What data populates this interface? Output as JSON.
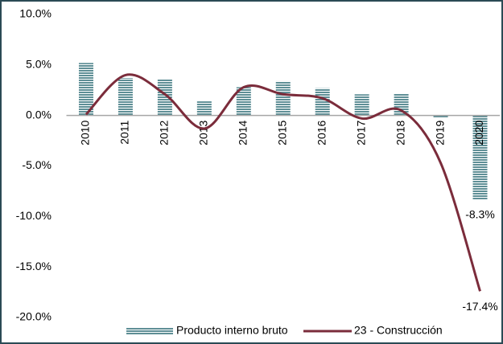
{
  "chart_data": {
    "type": "bar-line",
    "categories": [
      "2010",
      "2011",
      "2012",
      "2013",
      "2014",
      "2015",
      "2016",
      "2017",
      "2018",
      "2019",
      "2020"
    ],
    "series": [
      {
        "name": "Producto interno bruto",
        "type": "bar",
        "color": "#5f8f96",
        "values": [
          5.2,
          3.7,
          3.6,
          1.4,
          2.8,
          3.4,
          2.7,
          2.1,
          2.2,
          -0.2,
          -8.3
        ],
        "value_labels": [
          null,
          null,
          null,
          null,
          null,
          null,
          null,
          null,
          null,
          null,
          "-8.3%"
        ]
      },
      {
        "name": "23 - Construcción",
        "type": "line",
        "color": "#7b2c3b",
        "values": [
          0.1,
          4.0,
          2.1,
          -1.3,
          2.8,
          2.1,
          1.7,
          -0.3,
          0.5,
          -4.7,
          -17.4
        ],
        "value_labels": [
          null,
          null,
          null,
          null,
          null,
          null,
          null,
          null,
          null,
          null,
          "-17.4%"
        ]
      }
    ],
    "ylim": [
      -20,
      10
    ],
    "yticks": [
      {
        "value": 10,
        "label": "10.0%"
      },
      {
        "value": 5,
        "label": "5.0%"
      },
      {
        "value": 0,
        "label": "0.0%"
      },
      {
        "value": -5,
        "label": "-5.0%"
      },
      {
        "value": -10,
        "label": "-10.0%"
      },
      {
        "value": -15,
        "label": "-15.0%"
      },
      {
        "value": -20,
        "label": "-20.0%"
      }
    ],
    "legend": "bottom"
  }
}
